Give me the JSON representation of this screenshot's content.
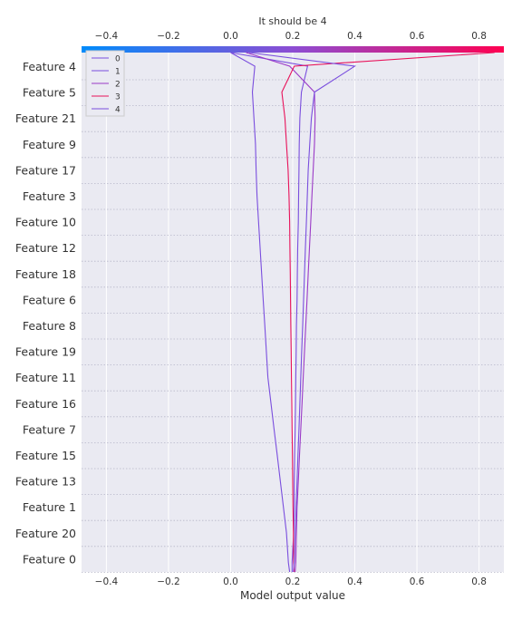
{
  "chart_data": {
    "type": "line",
    "title": "It should be 4",
    "xlabel": "Model output value",
    "ylabel": "",
    "xlim": [
      -0.48,
      0.88
    ],
    "x_ticks": [
      -0.4,
      -0.2,
      0.0,
      0.2,
      0.4,
      0.6,
      0.8
    ],
    "x_tick_labels": [
      "−0.4",
      "−0.2",
      "0.0",
      "0.2",
      "0.4",
      "0.6",
      "0.8"
    ],
    "features": [
      "Feature 4",
      "Feature 5",
      "Feature 21",
      "Feature 9",
      "Feature 17",
      "Feature 3",
      "Feature 10",
      "Feature 12",
      "Feature 18",
      "Feature 6",
      "Feature 8",
      "Feature 19",
      "Feature 11",
      "Feature 16",
      "Feature 7",
      "Feature 15",
      "Feature 13",
      "Feature 1",
      "Feature 20",
      "Feature 0"
    ],
    "series": [
      {
        "name": "0",
        "color": "#7a4ede",
        "x_path": [
          0.198,
          0.198,
          0.203,
          0.205,
          0.205,
          0.206,
          0.208,
          0.209,
          0.21,
          0.211,
          0.212,
          0.214,
          0.215,
          0.216,
          0.218,
          0.219,
          0.22,
          0.221,
          0.223,
          0.228,
          0.248,
          0.0
        ]
      },
      {
        "name": "1",
        "color": "#7a4ede",
        "x_path": [
          0.19,
          0.186,
          0.18,
          0.17,
          0.16,
          0.15,
          0.14,
          0.13,
          0.12,
          0.115,
          0.11,
          0.105,
          0.1,
          0.095,
          0.09,
          0.085,
          0.082,
          0.08,
          0.075,
          0.07,
          0.078,
          0.0
        ]
      },
      {
        "name": "2",
        "color": "#9b3ac7",
        "x_path": [
          0.208,
          0.21,
          0.212,
          0.214,
          0.218,
          0.222,
          0.226,
          0.23,
          0.234,
          0.238,
          0.242,
          0.246,
          0.25,
          0.254,
          0.258,
          0.262,
          0.266,
          0.27,
          0.272,
          0.27,
          0.19,
          0.05
        ]
      },
      {
        "name": "3",
        "color": "#e8125a",
        "x_path": [
          0.205,
          0.203,
          0.202,
          0.201,
          0.2,
          0.199,
          0.198,
          0.197,
          0.196,
          0.195,
          0.194,
          0.193,
          0.192,
          0.191,
          0.19,
          0.188,
          0.185,
          0.18,
          0.175,
          0.165,
          0.205,
          0.85
        ]
      },
      {
        "name": "4",
        "color": "#7a4ede",
        "x_path": [
          0.202,
          0.205,
          0.208,
          0.211,
          0.214,
          0.217,
          0.22,
          0.223,
          0.226,
          0.229,
          0.232,
          0.235,
          0.238,
          0.241,
          0.244,
          0.247,
          0.25,
          0.255,
          0.26,
          0.27,
          0.4,
          0.06
        ]
      }
    ],
    "colorbar": {
      "from": "#008bfb",
      "via": "#8c4dd3",
      "to": "#ff0051"
    },
    "legend_placement": "top-left",
    "grid": true
  }
}
